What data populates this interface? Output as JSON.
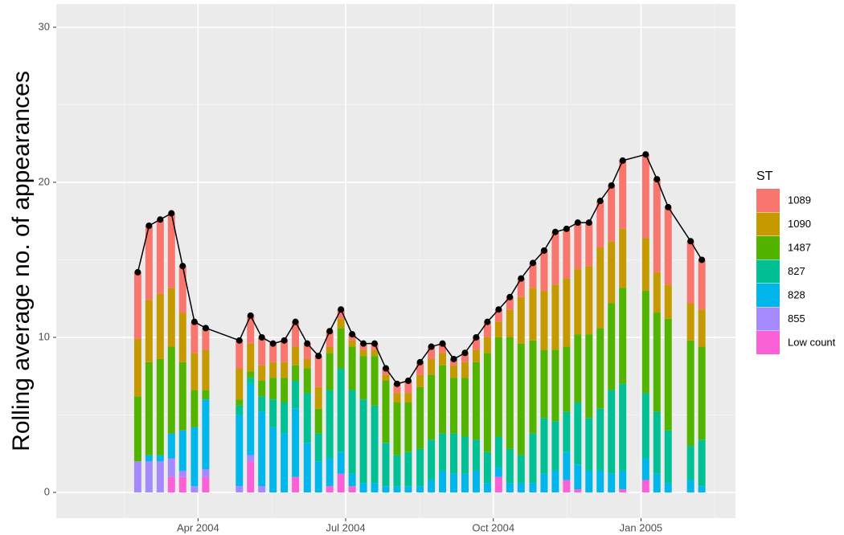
{
  "chart_data": {
    "type": "bar",
    "stacked": true,
    "y_label": "Rolling average no. of appearances",
    "legend_title": "ST",
    "legend_position": "right",
    "grid": true,
    "x": [
      2004.148,
      2004.167,
      2004.186,
      2004.205,
      2004.224,
      2004.244,
      2004.263,
      2004.32,
      2004.339,
      2004.358,
      2004.377,
      2004.396,
      2004.415,
      2004.435,
      2004.454,
      2004.473,
      2004.492,
      2004.511,
      2004.53,
      2004.549,
      2004.568,
      2004.587,
      2004.606,
      2004.626,
      2004.645,
      2004.664,
      2004.683,
      2004.702,
      2004.721,
      2004.74,
      2004.759,
      2004.778,
      2004.797,
      2004.817,
      2004.836,
      2004.855,
      2004.874,
      2004.893,
      2004.912,
      2004.931,
      2004.95,
      2004.969,
      2005.008,
      2005.027,
      2005.046,
      2005.084,
      2005.103
    ],
    "xlim": [
      2004.01,
      2005.16
    ],
    "xticks": [
      {
        "value": 2004.25,
        "label": "Apr 2004"
      },
      {
        "value": 2004.5,
        "label": "Jul 2004"
      },
      {
        "value": 2004.75,
        "label": "Oct 2004"
      },
      {
        "value": 2005.0,
        "label": "Jan 2005"
      }
    ],
    "xminorticks": [
      2004.125,
      2004.375,
      2004.625,
      2004.875,
      2005.125
    ],
    "ylim": [
      -1.66,
      31.5
    ],
    "yticks": [
      0,
      10,
      20,
      30
    ],
    "yminorticks": [
      5,
      15,
      25
    ],
    "series": [
      {
        "name": "1089",
        "color": "#F8766D",
        "values": [
          4.3,
          4.8,
          4.8,
          4.8,
          3.0,
          2.0,
          1.4,
          1.8,
          1.8,
          1.8,
          1.2,
          1.4,
          1.6,
          1.0,
          2.0,
          1.0,
          0.6,
          0.4,
          0.4,
          0.4,
          0.4,
          0.6,
          0.8,
          0.8,
          0.8,
          0.6,
          0.4,
          0.6,
          0.8,
          1.0,
          0.8,
          0.8,
          1.2,
          1.6,
          2.6,
          3.4,
          3.2,
          3.0,
          2.8,
          3.0,
          3.6,
          4.4,
          5.4,
          6.0,
          5.0,
          4.0,
          3.2
        ]
      },
      {
        "name": "1090",
        "color": "#C49A00",
        "values": [
          3.7,
          4.0,
          4.2,
          3.8,
          3.2,
          2.4,
          2.6,
          2.0,
          1.8,
          1.0,
          1.0,
          1.0,
          1.2,
          0.6,
          1.4,
          0.4,
          0.6,
          0.4,
          0.4,
          0.4,
          0.4,
          0.6,
          0.6,
          0.8,
          1.0,
          0.8,
          0.8,
          1.0,
          0.8,
          1.0,
          1.0,
          1.8,
          3.0,
          3.4,
          3.8,
          4.2,
          4.4,
          4.2,
          4.4,
          5.2,
          4.0,
          3.8,
          3.4,
          2.6,
          2.2,
          2.4,
          2.4
        ]
      },
      {
        "name": "1487",
        "color": "#53B400",
        "values": [
          4.2,
          6.0,
          6.2,
          5.6,
          4.4,
          2.4,
          0.6,
          0.4,
          0.4,
          1.0,
          1.4,
          1.6,
          1.0,
          1.6,
          1.6,
          2.4,
          2.6,
          2.8,
          2.8,
          3.2,
          4.0,
          3.4,
          3.2,
          4.0,
          4.2,
          4.4,
          3.6,
          3.8,
          5.0,
          6.4,
          6.4,
          7.2,
          7.2,
          6.0,
          4.4,
          4.6,
          4.2,
          4.4,
          5.4,
          5.2,
          5.6,
          6.2,
          6.6,
          6.4,
          7.2,
          6.8,
          6.0
        ]
      },
      {
        "name": "827",
        "color": "#00C094",
        "values": [
          0,
          0,
          0,
          0,
          0,
          0,
          0,
          0.6,
          0.4,
          1.0,
          1.8,
          2.0,
          1.8,
          3.2,
          1.8,
          4.4,
          5.4,
          5.4,
          5.4,
          5.0,
          2.8,
          2.0,
          2.2,
          2.4,
          2.6,
          2.4,
          2.6,
          2.4,
          2.0,
          2.0,
          2.0,
          2.2,
          1.8,
          3.2,
          3.6,
          3.2,
          2.6,
          4.0,
          3.4,
          4.0,
          5.4,
          5.6,
          4.2,
          4.0,
          3.4,
          2.2,
          3.0
        ]
      },
      {
        "name": "828",
        "color": "#00B6EB",
        "values": [
          0,
          0.4,
          0.4,
          1.6,
          2.6,
          3.8,
          4.5,
          4.6,
          4.6,
          4.8,
          4.2,
          3.8,
          4.4,
          3.2,
          2.0,
          1.8,
          1.4,
          0.8,
          0.6,
          0.6,
          0.4,
          0.4,
          0.4,
          0.4,
          0.8,
          1.4,
          1.2,
          1.2,
          1.4,
          0.6,
          0.6,
          0.6,
          0.6,
          0.6,
          1.2,
          1.4,
          1.8,
          1.6,
          1.4,
          1.4,
          1.2,
          1.2,
          1.4,
          1.2,
          0.6,
          0.8,
          0.4
        ]
      },
      {
        "name": "855",
        "color": "#A58AFF",
        "values": [
          2.0,
          2.0,
          2.0,
          1.2,
          0.4,
          0.4,
          0.5,
          0.4,
          0.4,
          0.4,
          0,
          0,
          0,
          0,
          0,
          0,
          0,
          0,
          0,
          0,
          0,
          0,
          0,
          0,
          0,
          0,
          0,
          0,
          0,
          0,
          0,
          0,
          0,
          0,
          0,
          0,
          0,
          0,
          0,
          0,
          0,
          0,
          0,
          0,
          0,
          0,
          0
        ]
      },
      {
        "name": "Low count",
        "color": "#FB61D7",
        "values": [
          0,
          0,
          0,
          1.0,
          1.0,
          0,
          1.0,
          0,
          2.0,
          0,
          0,
          0,
          1.0,
          0,
          0,
          0.4,
          1.2,
          0.4,
          0,
          0,
          0,
          0,
          0,
          0,
          0,
          0,
          0,
          0,
          0,
          0,
          1.0,
          0,
          0,
          0,
          0,
          0,
          0.8,
          0.2,
          0,
          0,
          0,
          0.2,
          0.8,
          0,
          0,
          0,
          0
        ]
      }
    ],
    "total_line": {
      "color": "#000000",
      "values": [
        14.2,
        17.2,
        17.6,
        18.0,
        14.6,
        11.0,
        10.6,
        9.8,
        11.4,
        10.0,
        9.6,
        9.8,
        11.0,
        9.6,
        8.8,
        10.4,
        11.8,
        10.2,
        9.6,
        9.6,
        8.0,
        7.0,
        7.2,
        8.4,
        9.4,
        9.6,
        8.6,
        9.0,
        10.0,
        11.0,
        11.8,
        12.6,
        13.8,
        14.8,
        15.6,
        16.8,
        17.0,
        17.4,
        17.4,
        18.8,
        19.8,
        21.4,
        21.8,
        20.2,
        18.4,
        16.2,
        15.0
      ]
    }
  }
}
